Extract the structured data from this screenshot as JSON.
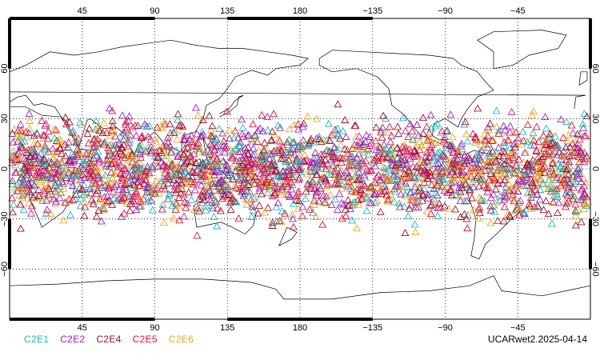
{
  "map": {
    "projection": "cylindrical equidistant",
    "lon_range": [
      0,
      360
    ],
    "lat_range": [
      -90,
      90
    ],
    "grid": "dotted",
    "lon_tick_values": [
      45,
      90,
      135,
      180,
      225,
      270,
      315
    ],
    "lon_tick_labels": [
      "45",
      "90",
      "135",
      "180",
      "−135",
      "−90",
      "−45"
    ],
    "lat_tick_values": [
      60,
      30,
      0,
      -30,
      -60
    ],
    "lat_tick_labels": [
      "60",
      "30",
      "0",
      "−30",
      "−60"
    ]
  },
  "legend": [
    {
      "label": "C2E1",
      "color": "#19b8c4"
    },
    {
      "label": "C2E2",
      "color": "#a020c8"
    },
    {
      "label": "C2E4",
      "color": "#a01028"
    },
    {
      "label": "C2E5",
      "color": "#e81030"
    },
    {
      "label": "C2E6",
      "color": "#f0a818"
    }
  ],
  "stamp": "UCARwet2.2025-04-14",
  "points": {
    "symbol": "open-triangle",
    "lat_band": [
      -42,
      42
    ]
  }
}
